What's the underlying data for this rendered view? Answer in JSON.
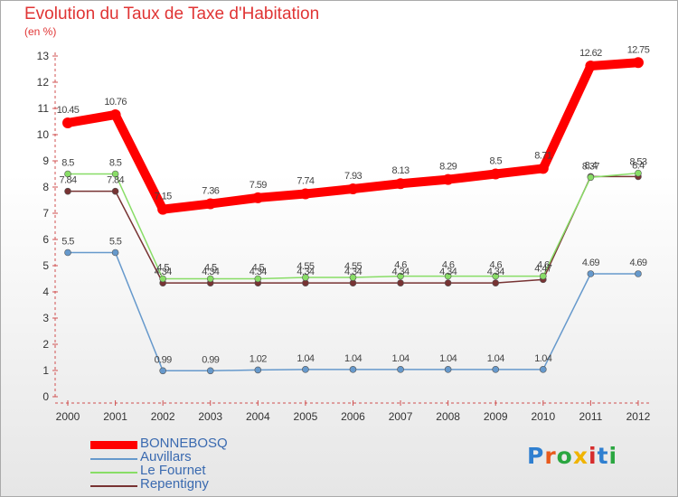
{
  "header": {
    "title": "Evolution du Taux de Taxe d'Habitation",
    "subtitle": "(en %)"
  },
  "logo": {
    "letters": [
      "P",
      "r",
      "o",
      "x",
      "i",
      "t",
      "i"
    ],
    "colors": [
      "#2f7fd0",
      "#e85a1c",
      "#2aa640",
      "#f0b400",
      "#d62c2c",
      "#2f7fd0",
      "#2aa640"
    ]
  },
  "chart_data": {
    "type": "line",
    "title": "Evolution du Taux de Taxe d'Habitation",
    "ylabel": "(en %)",
    "x": [
      "2000",
      "2001",
      "2002",
      "2003",
      "2004",
      "2005",
      "2006",
      "2007",
      "2008",
      "2009",
      "2010",
      "2011",
      "2012"
    ],
    "ylim": [
      0,
      13
    ],
    "yticks": [
      "0",
      "1",
      "2",
      "3",
      "4",
      "5",
      "6",
      "7",
      "8",
      "9",
      "10",
      "11",
      "12",
      "13"
    ],
    "series": [
      {
        "name": "BONNEBOSQ",
        "color": "#ff0000",
        "values": [
          10.45,
          10.76,
          7.15,
          7.36,
          7.59,
          7.74,
          7.93,
          8.13,
          8.29,
          8.5,
          8.71,
          12.62,
          12.75
        ],
        "labels": [
          "10.45",
          "10.76",
          "7.15",
          "7.36",
          "7.59",
          "7.74",
          "7.93",
          "8.13",
          "8.29",
          "8.5",
          "8.71",
          "12.62",
          "12.75"
        ]
      },
      {
        "name": "Auvillars",
        "color": "#6699cc",
        "values": [
          5.5,
          5.5,
          0.99,
          0.99,
          1.02,
          1.04,
          1.04,
          1.04,
          1.04,
          1.04,
          1.04,
          4.69,
          4.69
        ],
        "labels": [
          "5.5",
          "5.5",
          "0.99",
          "0.99",
          "1.02",
          "1.04",
          "1.04",
          "1.04",
          "1.04",
          "1.04",
          "1.04",
          "4.69",
          "4.69"
        ]
      },
      {
        "name": "Le Fournet",
        "color": "#88dd66",
        "values": [
          8.5,
          8.5,
          4.5,
          4.5,
          4.5,
          4.55,
          4.55,
          4.6,
          4.6,
          4.6,
          4.6,
          8.37,
          8.53
        ],
        "labels": [
          "8.5",
          "8.5",
          "4.5",
          "4.5",
          "4.5",
          "4.55",
          "4.55",
          "4.6",
          "4.6",
          "4.6",
          "4.6",
          "8.37",
          "8.53"
        ]
      },
      {
        "name": "Repentigny",
        "color": "#773333",
        "values": [
          7.84,
          7.84,
          4.34,
          4.34,
          4.34,
          4.34,
          4.34,
          4.34,
          4.34,
          4.34,
          4.47,
          8.4,
          8.4
        ],
        "labels": [
          "7.84",
          "7.84",
          "4.34",
          "4.34",
          "4.34",
          "4.34",
          "4.34",
          "4.34",
          "4.34",
          "4.34",
          "4.47",
          "8.4",
          "8.4"
        ]
      }
    ]
  }
}
